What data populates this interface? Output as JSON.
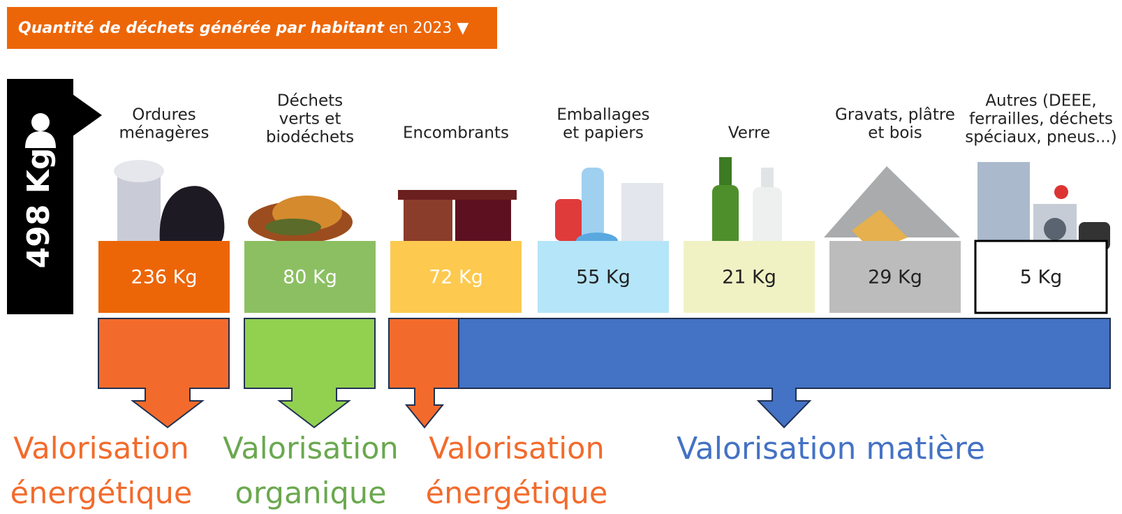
{
  "header": {
    "title_bold": "Quantité de déchets générée par habitant",
    "title_rest": "en 2023 ▼"
  },
  "total": "498 Kg",
  "categories": [
    {
      "lines": [
        "Ordures",
        "ménagères"
      ],
      "value": "236 Kg",
      "color": "#ec6608",
      "text_color": "#ffffff"
    },
    {
      "lines": [
        "Déchets",
        "verts et",
        "biodéchets"
      ],
      "value": "80 Kg",
      "color": "#8cbf62",
      "text_color": "#ffffff"
    },
    {
      "lines": [
        "Encombrants"
      ],
      "value": "72 Kg",
      "color": "#fdc94f",
      "text_color": "#ffffff"
    },
    {
      "lines": [
        "Emballages",
        "et papiers"
      ],
      "value": "55 Kg",
      "color": "#b5e5f8",
      "text_color": "#222222"
    },
    {
      "lines": [
        "Verre"
      ],
      "value": "21 Kg",
      "color": "#f1f2c4",
      "text_color": "#222222"
    },
    {
      "lines": [
        "Gravats, plâtre",
        "et bois"
      ],
      "value": "29 Kg",
      "color": "#bcbcbc",
      "text_color": "#222222"
    },
    {
      "lines": [
        "Autres (DEEE,",
        "ferrailles, déchets",
        "spéciaux, pneus...)"
      ],
      "value": "5 Kg",
      "color": "#ffffff",
      "text_color": "#222222"
    }
  ],
  "flows": [
    {
      "lines": [
        "Valorisation",
        "énergétique"
      ],
      "color": "#f26b2c"
    },
    {
      "lines": [
        "Valorisation",
        "organique"
      ],
      "color": "#6aa84f"
    },
    {
      "lines": [
        "Valorisation",
        "énergétique"
      ],
      "color": "#f26b2c"
    },
    {
      "lines": [
        "Valorisation matière"
      ],
      "color": "#4472c4"
    }
  ]
}
